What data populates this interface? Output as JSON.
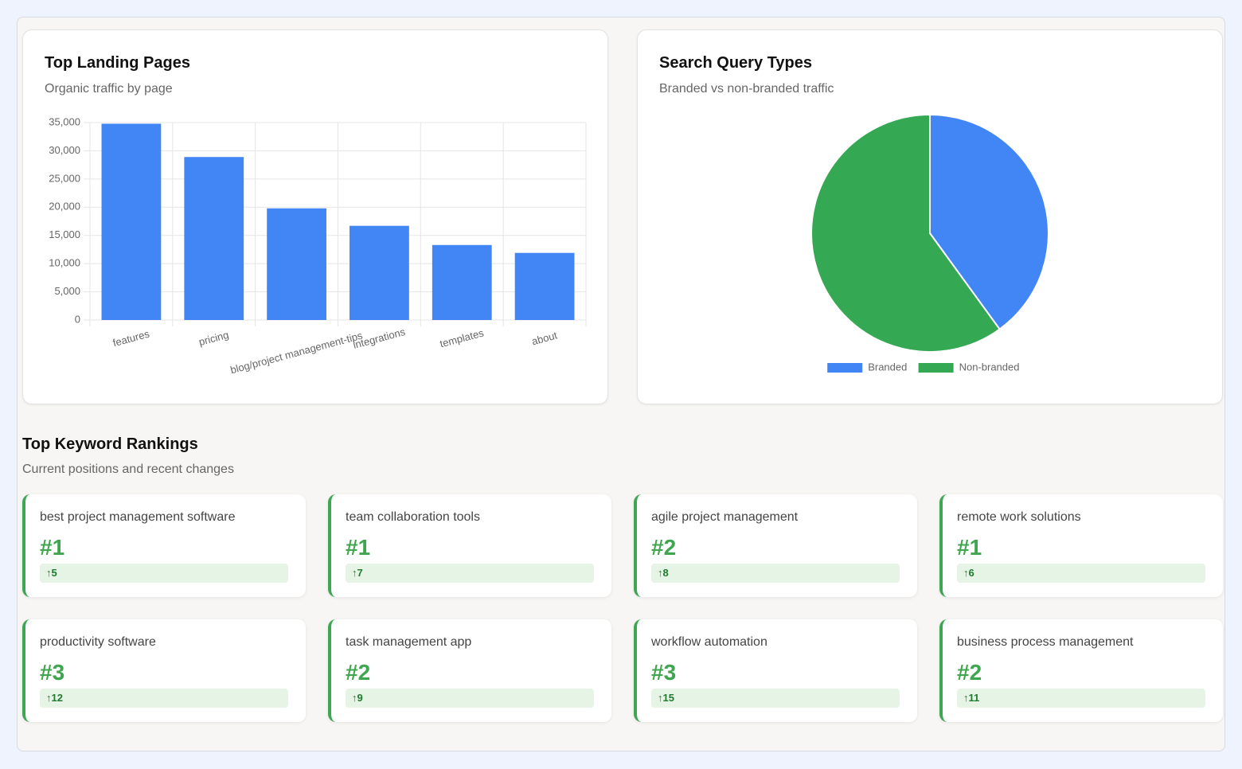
{
  "chart_data": [
    {
      "type": "bar",
      "title": "Top Landing Pages",
      "subtitle": "Organic traffic by page",
      "categories": [
        "features",
        "pricing",
        "blog/project management-tips",
        "integrations",
        "templates",
        "about"
      ],
      "values": [
        34800,
        28900,
        19800,
        16700,
        13300,
        11900
      ],
      "color": "#4285f4",
      "ylim": [
        0,
        35000
      ],
      "yticks": [
        0,
        {
          "value": 5000,
          "label": "5,000"
        },
        {
          "value": 10000,
          "label": "10,000"
        },
        {
          "value": 15000,
          "label": "15,000"
        },
        {
          "value": 20000,
          "label": "20,000"
        },
        {
          "value": 25000,
          "label": "25,000"
        },
        {
          "value": 30000,
          "label": "30,000"
        },
        {
          "value": 35000,
          "label": "35,000"
        }
      ],
      "grid": true
    },
    {
      "type": "pie",
      "title": "Search Query Types",
      "subtitle": "Branded vs non-branded traffic",
      "categories": [
        "Branded",
        "Non-branded"
      ],
      "values": [
        40,
        60
      ],
      "colors": [
        "#4285f4",
        "#34a853"
      ],
      "legend": "bottom"
    }
  ],
  "keywords": {
    "title": "Top Keyword Rankings",
    "subtitle": "Current positions and recent changes",
    "items": [
      {
        "keyword": "best project management software",
        "rank": "#1",
        "change": "↑5"
      },
      {
        "keyword": "team collaboration tools",
        "rank": "#1",
        "change": "↑7"
      },
      {
        "keyword": "agile project management",
        "rank": "#2",
        "change": "↑8"
      },
      {
        "keyword": "remote work solutions",
        "rank": "#1",
        "change": "↑6"
      },
      {
        "keyword": "productivity software",
        "rank": "#3",
        "change": "↑12"
      },
      {
        "keyword": "task management app",
        "rank": "#2",
        "change": "↑9"
      },
      {
        "keyword": "workflow automation",
        "rank": "#3",
        "change": "↑15"
      },
      {
        "keyword": "business process management",
        "rank": "#2",
        "change": "↑11"
      }
    ]
  }
}
